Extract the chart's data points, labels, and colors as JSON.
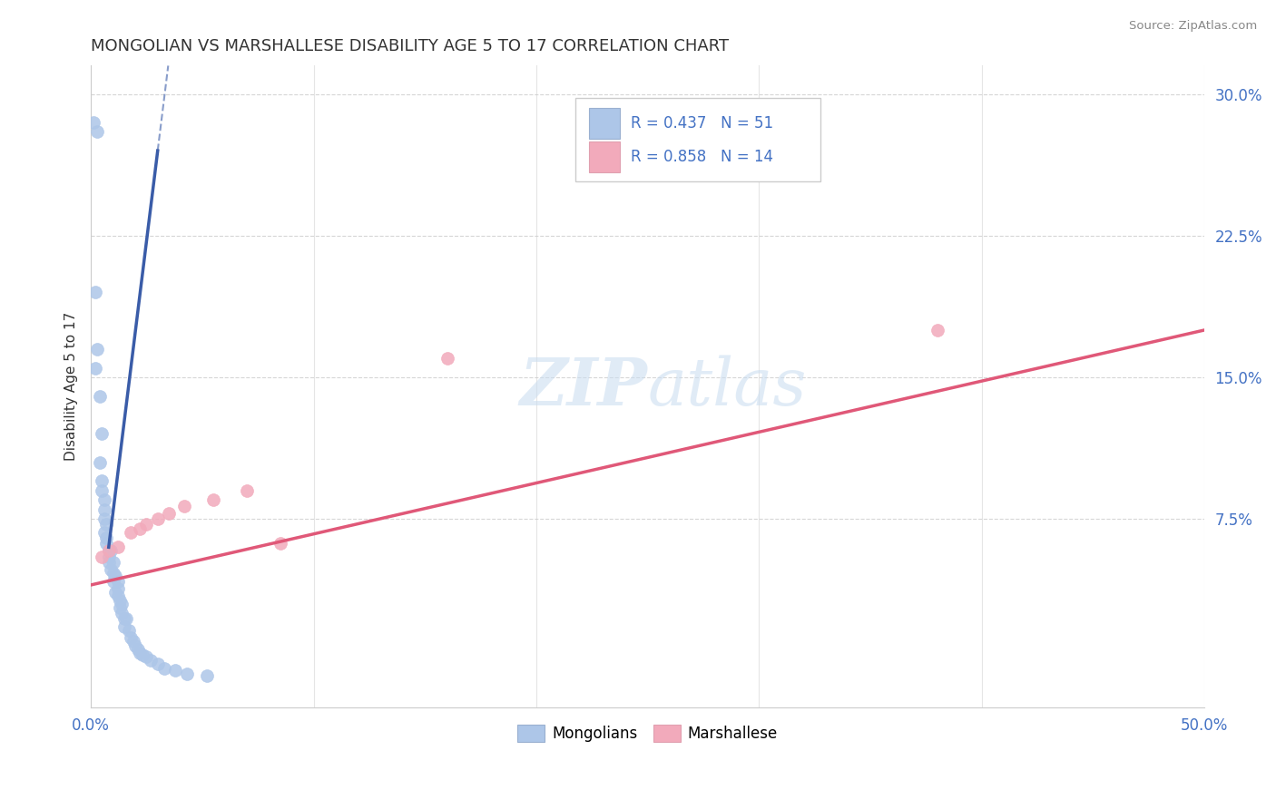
{
  "title": "MONGOLIAN VS MARSHALLESE DISABILITY AGE 5 TO 17 CORRELATION CHART",
  "source": "Source: ZipAtlas.com",
  "ylabel": "Disability Age 5 to 17",
  "xlim": [
    0.0,
    0.5
  ],
  "ylim": [
    -0.025,
    0.315
  ],
  "xtick_positions": [
    0.0,
    0.1,
    0.2,
    0.3,
    0.4,
    0.5
  ],
  "xtick_labels": [
    "0.0%",
    "",
    "",
    "",
    "",
    "50.0%"
  ],
  "ytick_positions": [
    0.075,
    0.15,
    0.225,
    0.3
  ],
  "ytick_labels": [
    "7.5%",
    "15.0%",
    "22.5%",
    "30.0%"
  ],
  "mongolian_R": 0.437,
  "mongolian_N": 51,
  "marshallese_R": 0.858,
  "marshallese_N": 14,
  "mongolian_color": "#adc6e8",
  "marshallese_color": "#f2aabb",
  "mongolian_line_color": "#3a5ca8",
  "marshallese_line_color": "#e05878",
  "legend_text_color": "#4472c4",
  "background_color": "#ffffff",
  "mongolian_x": [
    0.001,
    0.002,
    0.003,
    0.004,
    0.005,
    0.005,
    0.006,
    0.006,
    0.006,
    0.007,
    0.007,
    0.008,
    0.008,
    0.009,
    0.009,
    0.01,
    0.01,
    0.01,
    0.011,
    0.011,
    0.012,
    0.012,
    0.012,
    0.013,
    0.013,
    0.014,
    0.014,
    0.015,
    0.015,
    0.016,
    0.017,
    0.018,
    0.019,
    0.02,
    0.021,
    0.022,
    0.023,
    0.025,
    0.027,
    0.03,
    0.033,
    0.038,
    0.043,
    0.052,
    0.002,
    0.003,
    0.004,
    0.005,
    0.006,
    0.007,
    0.008
  ],
  "mongolian_y": [
    0.285,
    0.195,
    0.165,
    0.14,
    0.12,
    0.095,
    0.085,
    0.08,
    0.075,
    0.072,
    0.062,
    0.058,
    0.052,
    0.058,
    0.048,
    0.052,
    0.046,
    0.042,
    0.045,
    0.036,
    0.042,
    0.038,
    0.034,
    0.032,
    0.028,
    0.03,
    0.025,
    0.022,
    0.018,
    0.022,
    0.016,
    0.012,
    0.01,
    0.008,
    0.006,
    0.004,
    0.003,
    0.002,
    0.0,
    -0.002,
    -0.004,
    -0.005,
    -0.007,
    -0.008,
    0.155,
    0.28,
    0.105,
    0.09,
    0.068,
    0.065,
    0.055
  ],
  "marshallese_x": [
    0.005,
    0.012,
    0.022,
    0.03,
    0.035,
    0.042,
    0.055,
    0.07,
    0.085,
    0.38,
    0.008,
    0.018,
    0.025,
    0.16
  ],
  "marshallese_y": [
    0.055,
    0.06,
    0.07,
    0.075,
    0.078,
    0.082,
    0.085,
    0.09,
    0.062,
    0.175,
    0.058,
    0.068,
    0.072,
    0.16
  ],
  "mon_line_x0": 0.008,
  "mon_line_x1": 0.03,
  "mon_line_y0": 0.06,
  "mon_line_y1": 0.27,
  "mon_line_dash_y1": 0.315,
  "mar_line_x0": 0.0,
  "mar_line_x1": 0.5,
  "mar_line_y0": 0.04,
  "mar_line_y1": 0.175
}
